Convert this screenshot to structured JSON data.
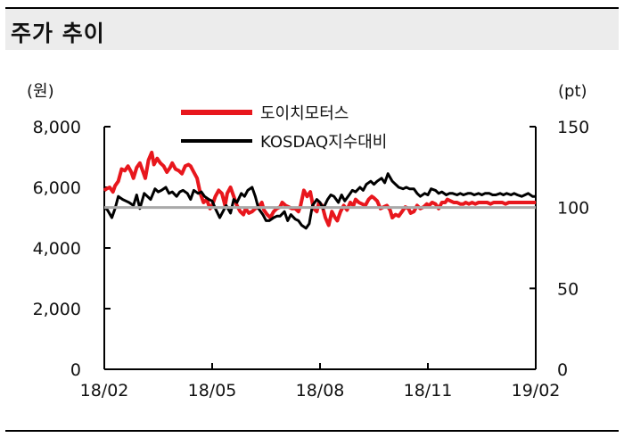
{
  "header": {
    "title": "주가 추이"
  },
  "chart_data": {
    "type": "line",
    "title": "",
    "left_unit": "(원)",
    "right_unit": "(pt)",
    "x_ticks": [
      "18/02",
      "18/05",
      "18/08",
      "18/11",
      "19/02"
    ],
    "y_left": {
      "ticks": [
        "0",
        "2,000",
        "4,000",
        "6,000",
        "8,000"
      ],
      "tick_values": [
        0,
        2000,
        4000,
        6000,
        8000
      ],
      "ylim": [
        0,
        8000
      ]
    },
    "y_right": {
      "ticks": [
        "0",
        "50",
        "100",
        "150"
      ],
      "tick_values": [
        0,
        50,
        100,
        150
      ],
      "ylim": [
        0,
        150
      ]
    },
    "reference_line": {
      "axis": "right",
      "value": 100
    },
    "legend_position": "top-center",
    "series": [
      {
        "name": "도이치모터스",
        "axis": "left",
        "color": "#e8171d",
        "x": [
          0,
          0.02,
          0.05,
          0.08,
          0.1,
          0.13,
          0.16,
          0.19,
          0.22,
          0.25,
          0.27,
          0.3,
          0.33,
          0.36,
          0.38,
          0.41,
          0.44,
          0.46,
          0.49,
          0.52,
          0.55,
          0.58,
          0.61,
          0.63,
          0.66,
          0.69,
          0.72,
          0.75,
          0.78,
          0.8,
          0.83,
          0.86,
          0.89,
          0.92,
          0.95,
          0.98,
          1.0,
          1.03,
          1.06,
          1.09,
          1.12,
          1.14,
          1.17,
          1.2,
          1.23,
          1.26,
          1.29,
          1.31,
          1.34,
          1.37,
          1.4,
          1.43,
          1.46,
          1.48,
          1.51,
          1.54,
          1.57,
          1.6,
          1.63,
          1.65,
          1.68,
          1.71,
          1.74,
          1.77,
          1.8,
          1.82,
          1.85,
          1.88,
          1.91,
          1.94,
          1.97,
          1.99,
          2.02,
          2.05,
          2.08,
          2.11,
          2.14,
          2.16,
          2.19,
          2.22,
          2.25,
          2.28,
          2.31,
          2.33,
          2.36,
          2.39,
          2.42,
          2.45,
          2.48,
          2.5,
          2.53,
          2.56,
          2.59,
          2.62,
          2.65,
          2.67,
          2.7,
          2.73,
          2.76,
          2.79,
          2.82,
          2.84,
          2.87,
          2.9,
          2.93,
          2.96,
          2.99,
          3.01,
          3.04,
          3.07,
          3.1,
          3.13,
          3.16,
          3.18,
          3.21,
          3.24,
          3.27,
          3.3,
          3.33,
          3.35,
          3.38,
          3.41,
          3.44,
          3.47,
          3.5,
          3.52,
          3.55,
          3.58,
          3.61,
          3.64,
          3.67,
          3.69,
          3.72,
          3.75,
          3.78,
          3.81,
          3.84,
          3.86,
          3.89,
          3.92,
          3.95,
          3.98,
          4.0
        ],
        "values": [
          5900,
          5950,
          6000,
          5850,
          6050,
          6200,
          6600,
          6550,
          6700,
          6500,
          6300,
          6650,
          6800,
          6500,
          6300,
          6900,
          7150,
          6750,
          6950,
          6800,
          6700,
          6500,
          6650,
          6800,
          6600,
          6550,
          6450,
          6700,
          6750,
          6700,
          6500,
          6300,
          5800,
          5500,
          5600,
          5300,
          5400,
          5700,
          5900,
          5800,
          5400,
          5800,
          6000,
          5700,
          5400,
          5200,
          5100,
          5300,
          5150,
          5200,
          5300,
          5350,
          5500,
          5250,
          5100,
          5000,
          5200,
          5300,
          5350,
          5500,
          5400,
          5350,
          5300,
          5300,
          5200,
          5400,
          5900,
          5700,
          5850,
          5300,
          5200,
          5500,
          5400,
          5000,
          4750,
          5200,
          5000,
          4900,
          5200,
          5400,
          5250,
          5500,
          5400,
          5600,
          5500,
          5450,
          5400,
          5600,
          5700,
          5650,
          5550,
          5300,
          5350,
          5400,
          5250,
          5000,
          5100,
          5050,
          5200,
          5350,
          5300,
          5150,
          5200,
          5400,
          5300,
          5350,
          5450,
          5400,
          5500,
          5450,
          5300,
          5500,
          5500,
          5600,
          5550,
          5500,
          5500,
          5450,
          5450,
          5500,
          5450,
          5500,
          5450,
          5500,
          5500,
          5500,
          5500,
          5450,
          5500,
          5500,
          5500,
          5500,
          5450,
          5500,
          5500,
          5500,
          5500,
          5500,
          5500,
          5500,
          5500,
          5500,
          5500
        ]
      },
      {
        "name": "KOSDAQ지수대비",
        "axis": "left",
        "color": "#000000",
        "x": [
          0,
          0.03,
          0.07,
          0.1,
          0.13,
          0.17,
          0.2,
          0.23,
          0.27,
          0.3,
          0.33,
          0.37,
          0.4,
          0.43,
          0.47,
          0.5,
          0.53,
          0.57,
          0.6,
          0.63,
          0.67,
          0.7,
          0.73,
          0.77,
          0.8,
          0.83,
          0.87,
          0.9,
          0.93,
          0.97,
          1.0,
          1.03,
          1.07,
          1.1,
          1.13,
          1.17,
          1.2,
          1.23,
          1.27,
          1.3,
          1.33,
          1.37,
          1.4,
          1.43,
          1.47,
          1.5,
          1.53,
          1.57,
          1.6,
          1.63,
          1.67,
          1.7,
          1.73,
          1.77,
          1.8,
          1.83,
          1.87,
          1.9,
          1.93,
          1.97,
          2.0,
          2.03,
          2.07,
          2.1,
          2.13,
          2.17,
          2.2,
          2.23,
          2.27,
          2.3,
          2.33,
          2.37,
          2.4,
          2.43,
          2.47,
          2.5,
          2.53,
          2.57,
          2.6,
          2.63,
          2.67,
          2.7,
          2.73,
          2.77,
          2.8,
          2.83,
          2.87,
          2.9,
          2.93,
          2.97,
          3.0,
          3.03,
          3.07,
          3.1,
          3.13,
          3.17,
          3.2,
          3.23,
          3.27,
          3.3,
          3.33,
          3.37,
          3.4,
          3.43,
          3.47,
          3.5,
          3.53,
          3.57,
          3.6,
          3.63,
          3.67,
          3.7,
          3.73,
          3.77,
          3.8,
          3.83,
          3.87,
          3.9,
          3.93,
          3.97,
          4.0
        ],
        "values": [
          5350,
          5250,
          5000,
          5300,
          5700,
          5600,
          5550,
          5500,
          5400,
          5750,
          5300,
          5800,
          5700,
          5600,
          5950,
          5850,
          5900,
          6000,
          5800,
          5850,
          5700,
          5850,
          5900,
          5800,
          5600,
          5900,
          5800,
          5850,
          5700,
          5600,
          5550,
          5300,
          5000,
          5200,
          5400,
          5150,
          5600,
          5500,
          5800,
          5700,
          5900,
          6000,
          5700,
          5300,
          5100,
          4900,
          4900,
          5000,
          5050,
          5050,
          5200,
          4900,
          5100,
          4950,
          4900,
          4750,
          4650,
          4800,
          5400,
          5600,
          5500,
          5300,
          5600,
          5750,
          5700,
          5500,
          5750,
          5550,
          5750,
          5900,
          5850,
          6000,
          5900,
          6100,
          6200,
          6100,
          6200,
          6300,
          6150,
          6450,
          6200,
          6100,
          6000,
          5950,
          6000,
          5950,
          5950,
          5800,
          5700,
          5800,
          5750,
          5950,
          5900,
          5800,
          5850,
          5750,
          5800,
          5800,
          5750,
          5800,
          5750,
          5800,
          5800,
          5750,
          5800,
          5750,
          5800,
          5800,
          5750,
          5750,
          5800,
          5750,
          5800,
          5750,
          5800,
          5750,
          5700,
          5750,
          5800,
          5700,
          5700
        ]
      }
    ]
  }
}
